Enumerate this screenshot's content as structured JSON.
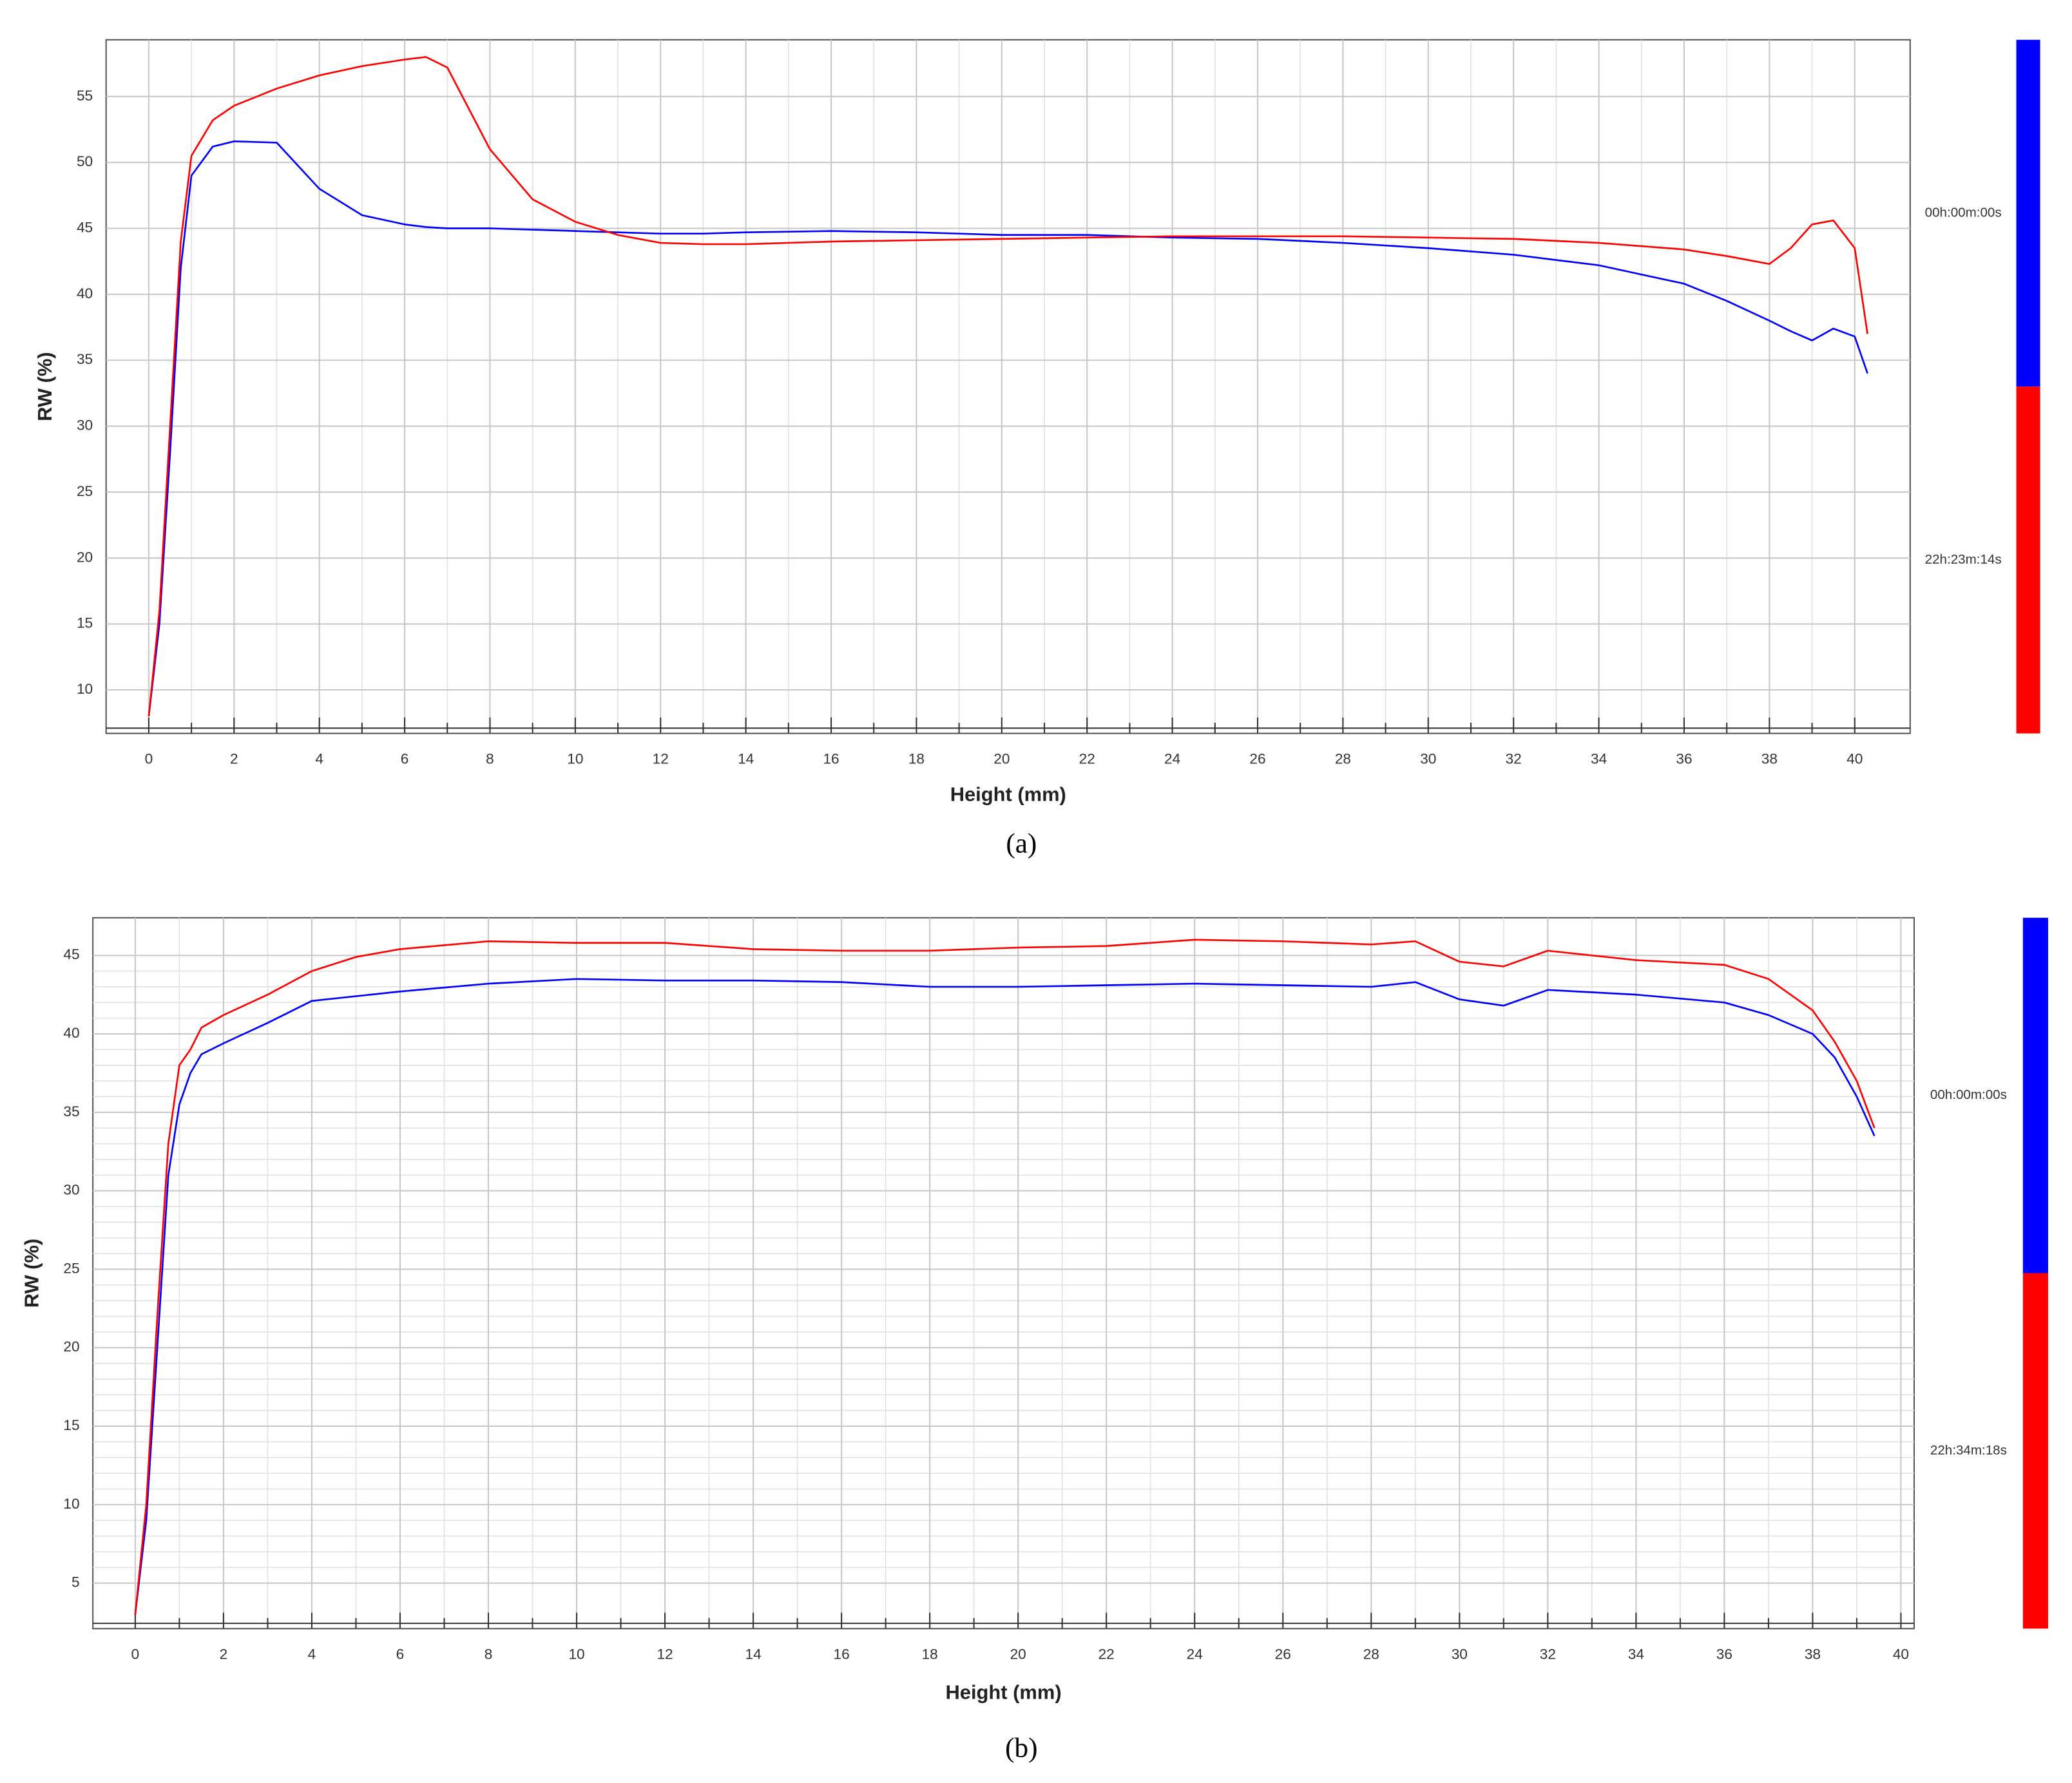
{
  "chart_data": [
    {
      "type": "line",
      "caption": "(a)",
      "x_label": "Height (mm)",
      "y_label": "RW (%)",
      "xlim": [
        -1,
        41.3
      ],
      "ylim": [
        6.7,
        59.3
      ],
      "xticks": [
        0,
        2,
        4,
        6,
        8,
        10,
        12,
        14,
        16,
        18,
        20,
        22,
        24,
        26,
        28,
        30,
        32,
        34,
        36,
        38,
        40
      ],
      "yticks": [
        10,
        15,
        20,
        25,
        30,
        35,
        40,
        45,
        50,
        55
      ],
      "grid": true,
      "x": [
        0,
        0.25,
        0.5,
        0.75,
        1,
        1.5,
        2,
        3,
        4,
        5,
        6,
        6.5,
        7,
        8,
        9,
        10,
        11,
        12,
        13,
        14,
        16,
        18,
        20,
        22,
        24,
        26,
        28,
        30,
        32,
        34,
        36,
        37,
        38,
        38.5,
        39,
        39.5,
        40,
        40.3
      ],
      "series": [
        {
          "name": "00h:00m:00s",
          "color": "#0000ff",
          "values": [
            8,
            15,
            28,
            42,
            49,
            51.2,
            51.6,
            51.5,
            48,
            46,
            45.3,
            45.1,
            45,
            45,
            44.9,
            44.8,
            44.7,
            44.6,
            44.6,
            44.7,
            44.8,
            44.7,
            44.5,
            44.5,
            44.3,
            44.2,
            43.9,
            43.5,
            43,
            42.2,
            40.8,
            39.5,
            38,
            37.2,
            36.5,
            37.4,
            36.8,
            34
          ]
        },
        {
          "name": "22h:23m:14s",
          "color": "#ff0000",
          "values": [
            8,
            16,
            30,
            44,
            50.5,
            53.2,
            54.3,
            55.6,
            56.6,
            57.3,
            57.8,
            58,
            57.2,
            51,
            47.2,
            45.5,
            44.5,
            43.9,
            43.8,
            43.8,
            44,
            44.1,
            44.2,
            44.3,
            44.4,
            44.4,
            44.4,
            44.3,
            44.2,
            43.9,
            43.4,
            42.9,
            42.3,
            43.5,
            45.3,
            45.6,
            43.5,
            37
          ]
        }
      ]
    },
    {
      "type": "line",
      "caption": "(b)",
      "x_label": "Height (mm)",
      "y_label": "RW (%)",
      "xlim": [
        -0.96,
        40.3
      ],
      "ylim": [
        2.1,
        47.4
      ],
      "xticks": [
        0,
        2,
        4,
        6,
        8,
        10,
        12,
        14,
        16,
        18,
        20,
        22,
        24,
        26,
        28,
        30,
        32,
        34,
        36,
        38,
        40
      ],
      "yticks": [
        5,
        10,
        15,
        20,
        25,
        30,
        35,
        40,
        45
      ],
      "grid": true,
      "x": [
        0,
        0.25,
        0.5,
        0.75,
        1,
        1.25,
        1.5,
        2,
        3,
        4,
        5,
        6,
        8,
        10,
        12,
        14,
        16,
        18,
        20,
        22,
        24,
        26,
        28,
        29,
        30,
        31,
        32,
        34,
        36,
        37,
        38,
        38.5,
        39,
        39.4
      ],
      "series": [
        {
          "name": "00h:00m:00s",
          "color": "#0000ff",
          "values": [
            3,
            9,
            20,
            31,
            35.5,
            37.5,
            38.7,
            39.4,
            40.7,
            42.1,
            42.4,
            42.7,
            43.2,
            43.5,
            43.4,
            43.4,
            43.3,
            43,
            43,
            43.1,
            43.2,
            43.1,
            43,
            43.3,
            42.2,
            41.8,
            42.8,
            42.5,
            42,
            41.2,
            40,
            38.5,
            36,
            33.5
          ]
        },
        {
          "name": "22h:34m:18s",
          "color": "#ff0000",
          "values": [
            3,
            10,
            22,
            33,
            38,
            39,
            40.4,
            41.2,
            42.5,
            44,
            44.9,
            45.4,
            45.9,
            45.8,
            45.8,
            45.4,
            45.3,
            45.3,
            45.5,
            45.6,
            46,
            45.9,
            45.7,
            45.9,
            44.6,
            44.3,
            45.3,
            44.7,
            44.4,
            43.5,
            41.5,
            39.5,
            37,
            34
          ]
        }
      ]
    }
  ]
}
